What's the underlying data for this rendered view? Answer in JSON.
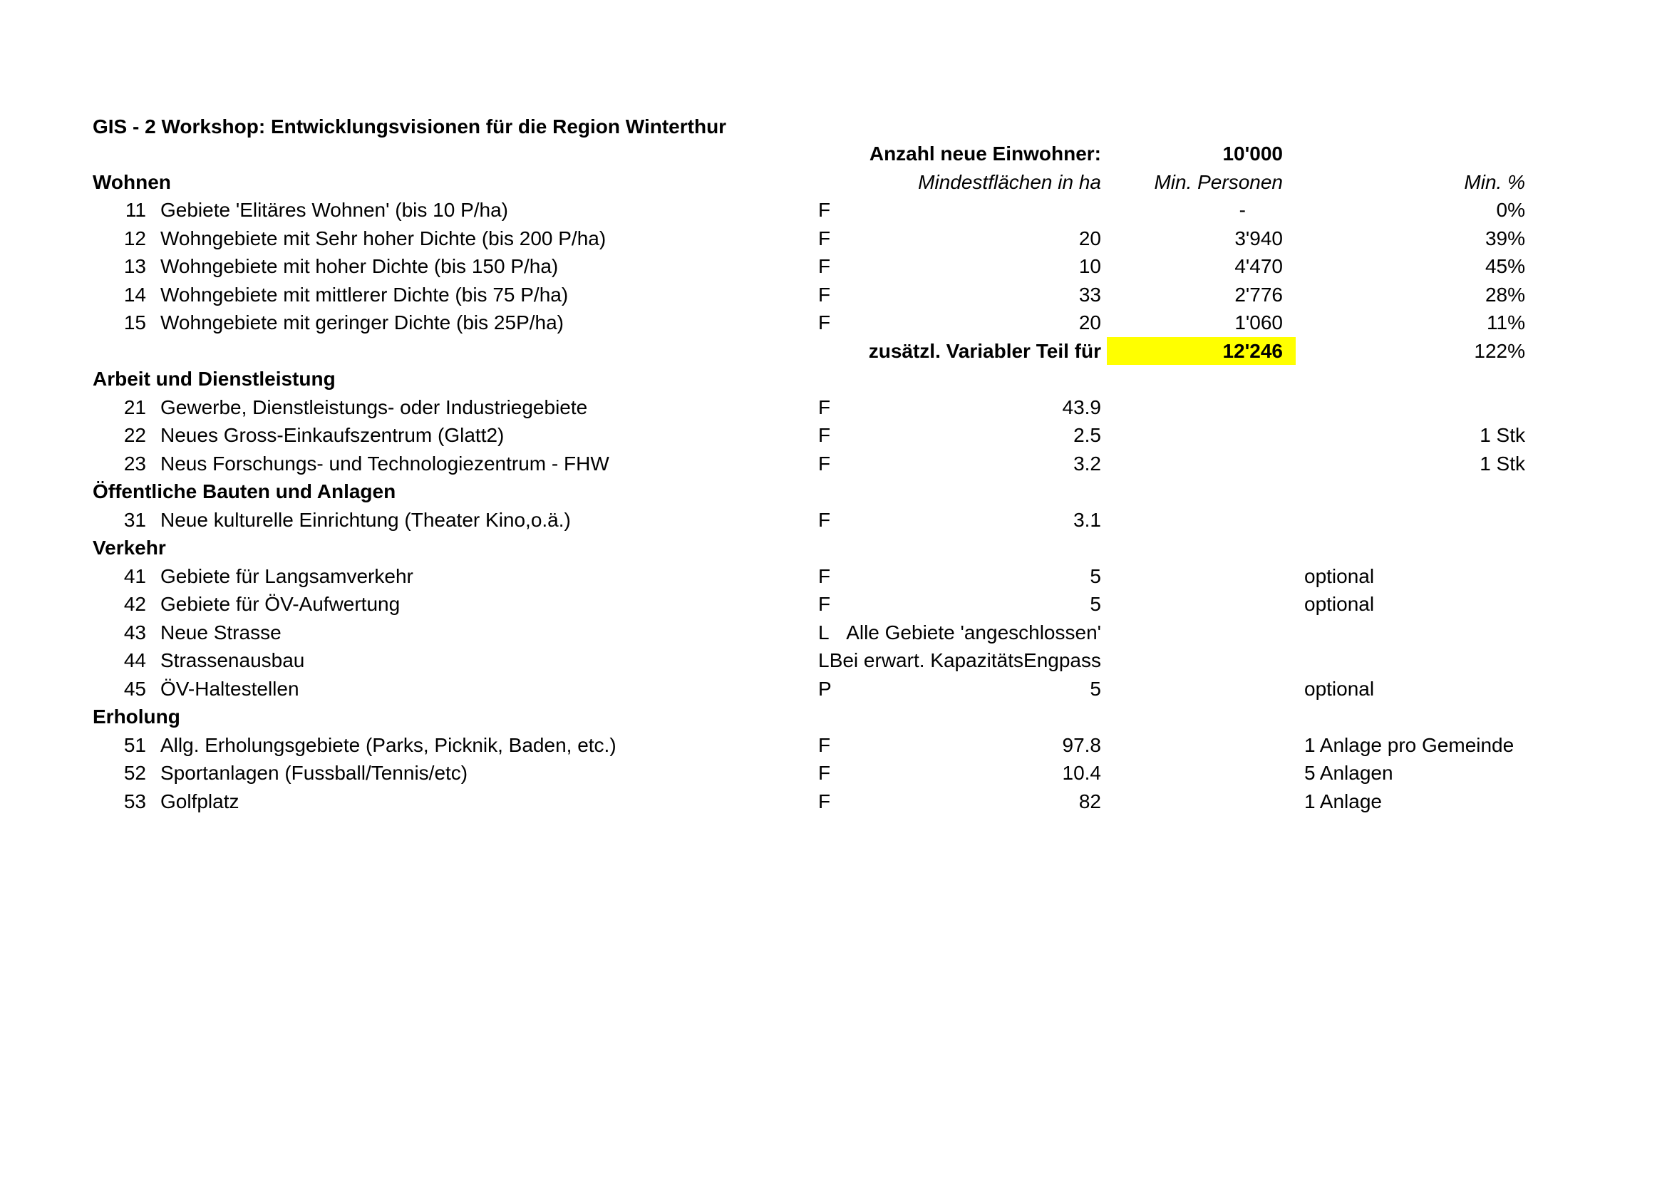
{
  "title": "GIS - 2 Workshop: Entwicklungsvisionen für die Region Winterthur",
  "highlight_color": "#ffff00",
  "table": {
    "rows": [
      {
        "kind": "anzahl",
        "ha": "Anzahl neue Einwohner:",
        "pers": "10'000"
      },
      {
        "kind": "colheaders",
        "label": "Wohnen",
        "ha": "Mindestflächen in ha",
        "pers": "Min. Personen",
        "pct": "Min. %"
      },
      {
        "kind": "item",
        "num": "11",
        "label": "Gebiete 'Elitäres Wohnen' (bis 10 P/ha)",
        "type": "F",
        "ha": "",
        "pers": "-",
        "note": "",
        "pct": "0%"
      },
      {
        "kind": "item",
        "num": "12",
        "label": "Wohngebiete mit Sehr hoher Dichte (bis 200 P/ha)",
        "type": "F",
        "ha": "20",
        "pers": "3'940",
        "note": "",
        "pct": "39%"
      },
      {
        "kind": "item",
        "num": "13",
        "label": "Wohngebiete mit hoher Dichte (bis 150 P/ha)",
        "type": "F",
        "ha": "10",
        "pers": "4'470",
        "note": "",
        "pct": "45%"
      },
      {
        "kind": "item",
        "num": "14",
        "label": "Wohngebiete mit mittlerer Dichte (bis 75 P/ha)",
        "type": "F",
        "ha": "33",
        "pers": "2'776",
        "note": "",
        "pct": "28%"
      },
      {
        "kind": "item",
        "num": "15",
        "label": "Wohngebiete mit geringer Dichte (bis 25P/ha)",
        "type": "F",
        "ha": "20",
        "pers": "1'060",
        "note": "",
        "pct": "11%"
      },
      {
        "kind": "zusatz",
        "ha": "zusätzl. Variabler Teil für",
        "pers": "12'246",
        "pct": "122%"
      },
      {
        "kind": "section",
        "label": "Arbeit und Dienstleistung"
      },
      {
        "kind": "item",
        "num": "21",
        "label": "Gewerbe, Dienstleistungs- oder Industriegebiete",
        "type": "F",
        "ha": "43.9",
        "pers": "",
        "note": "",
        "pct": ""
      },
      {
        "kind": "item",
        "num": "22",
        "label": "Neues Gross-Einkaufszentrum (Glatt2)",
        "type": "F",
        "ha": "2.5",
        "pers": "",
        "note": "",
        "pct": "1 Stk"
      },
      {
        "kind": "item",
        "num": "23",
        "label": "Neus Forschungs- und Technologiezentrum - FHW",
        "type": "F",
        "ha": "3.2",
        "pers": "",
        "note": "",
        "pct": "1 Stk"
      },
      {
        "kind": "section",
        "label": "Öffentliche Bauten und Anlagen"
      },
      {
        "kind": "item",
        "num": "31",
        "label": "Neue kulturelle Einrichtung (Theater Kino,o.ä.)",
        "type": "F",
        "ha": "3.1",
        "pers": "",
        "note": "",
        "pct": ""
      },
      {
        "kind": "section",
        "label": "Verkehr"
      },
      {
        "kind": "item",
        "num": "41",
        "label": "Gebiete für Langsamverkehr",
        "type": "F",
        "ha": "5",
        "pers": "",
        "note": "optional",
        "pct": ""
      },
      {
        "kind": "item",
        "num": "42",
        "label": "Gebiete für ÖV-Aufwertung",
        "type": "F",
        "ha": "5",
        "pers": "",
        "note": "optional",
        "pct": ""
      },
      {
        "kind": "item",
        "num": "43",
        "label": "Neue Strasse",
        "type": "L",
        "ha": "Alle Gebiete 'angeschlossen'",
        "pers": "",
        "note": "",
        "pct": ""
      },
      {
        "kind": "item",
        "num": "44",
        "label": "Strassenausbau",
        "type": "L",
        "ha": "Bei erwart. KapazitätsEngpass",
        "pers": "",
        "note": "",
        "pct": ""
      },
      {
        "kind": "item",
        "num": "45",
        "label": "ÖV-Haltestellen",
        "type": "P",
        "ha": "5",
        "pers": "",
        "note": "optional",
        "pct": ""
      },
      {
        "kind": "section",
        "label": "Erholung"
      },
      {
        "kind": "item",
        "num": "51",
        "label": "Allg. Erholungsgebiete (Parks, Picknik, Baden, etc.)",
        "type": "F",
        "ha": "97.8",
        "pers": "",
        "note": "1 Anlage pro Gemeinde",
        "pct": ""
      },
      {
        "kind": "item",
        "num": "52",
        "label": "Sportanlagen (Fussball/Tennis/etc)",
        "type": "F",
        "ha": "10.4",
        "pers": "",
        "note": "5 Anlagen",
        "pct": ""
      },
      {
        "kind": "item",
        "num": "53",
        "label": "Golfplatz",
        "type": "F",
        "ha": "82",
        "pers": "",
        "note": "1 Anlage",
        "pct": ""
      }
    ]
  }
}
